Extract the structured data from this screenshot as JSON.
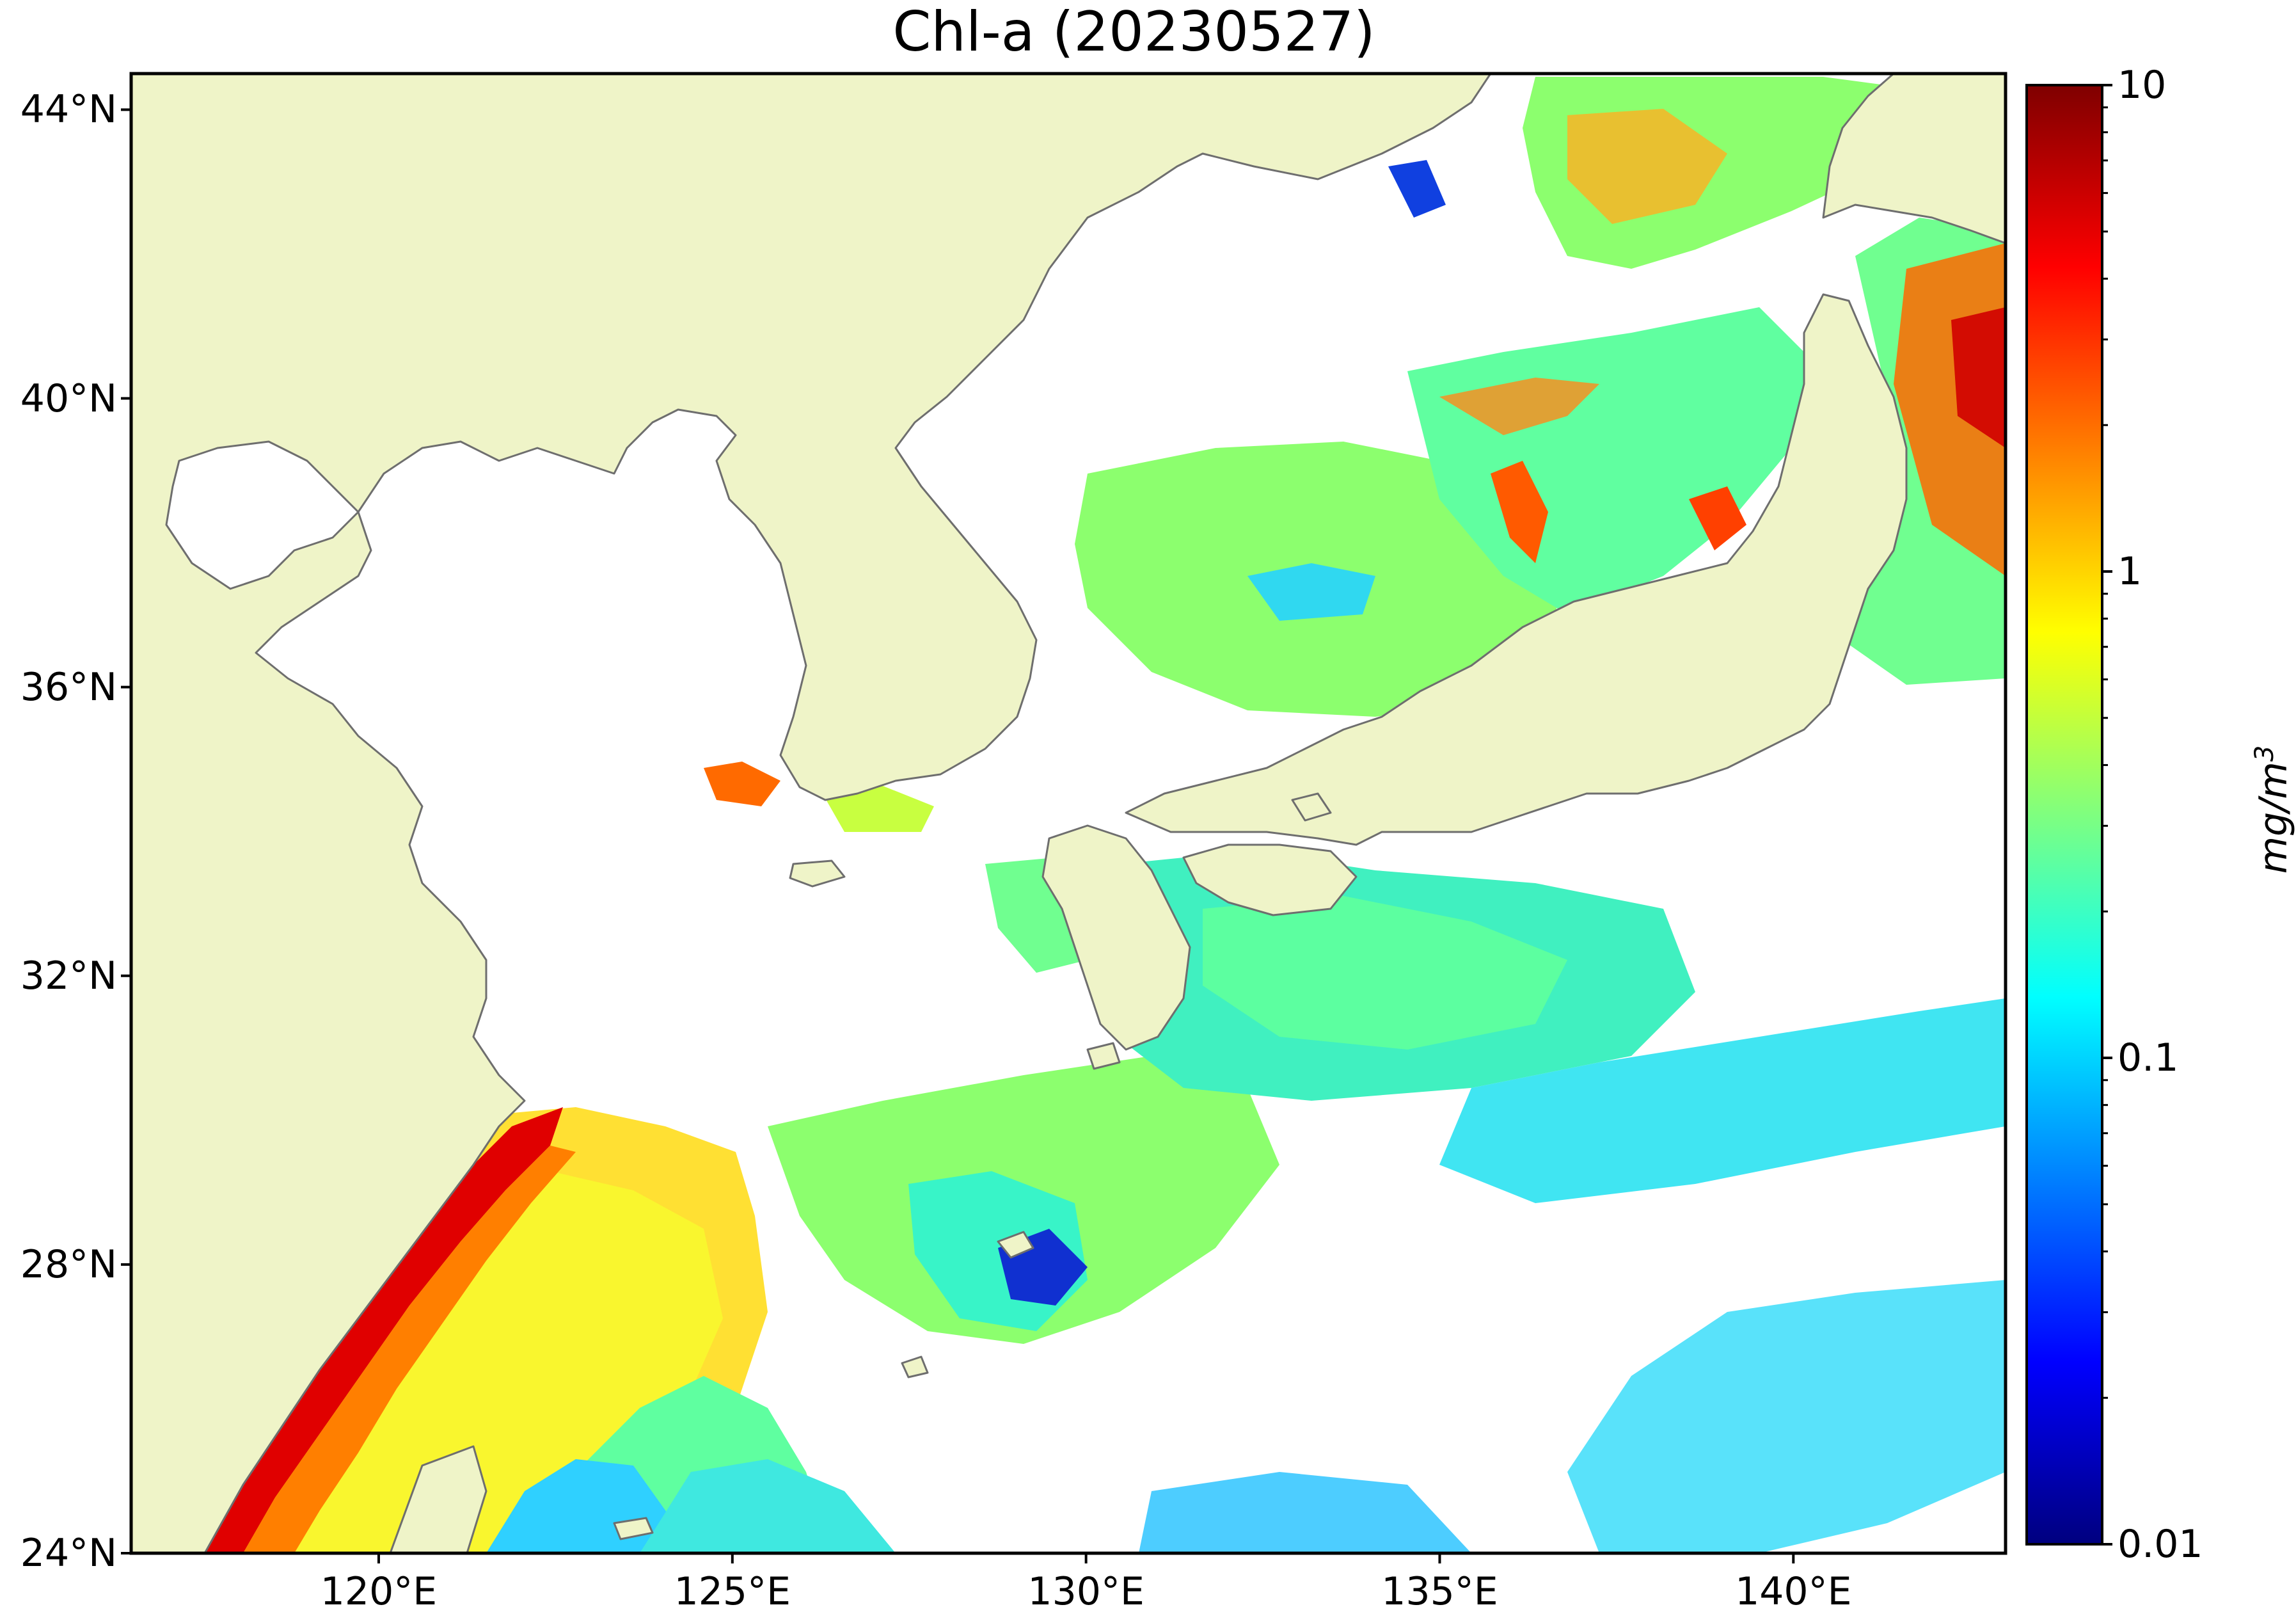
{
  "title": "Chl-a (20230527)",
  "map": {
    "lon_range": [
      116.5,
      143.0
    ],
    "lat_range": [
      24.0,
      44.5
    ],
    "projection": "equirectangular",
    "lat_ticks": [
      {
        "value": 24,
        "label": "24°N"
      },
      {
        "value": 28,
        "label": "28°N"
      },
      {
        "value": 32,
        "label": "32°N"
      },
      {
        "value": 36,
        "label": "36°N"
      },
      {
        "value": 40,
        "label": "40°N"
      },
      {
        "value": 44,
        "label": "44°N"
      }
    ],
    "lon_ticks": [
      {
        "value": 120,
        "label": "120°E"
      },
      {
        "value": 125,
        "label": "125°E"
      },
      {
        "value": 130,
        "label": "130°E"
      },
      {
        "value": 135,
        "label": "135°E"
      },
      {
        "value": 140,
        "label": "140°E"
      }
    ],
    "colors": {
      "land": "#eff4c8",
      "coastline": "#6e6e6e",
      "no_data": "#ffffff",
      "frame": "#000000"
    }
  },
  "colorbar": {
    "scale": "log",
    "min": 0.01,
    "max": 10,
    "unit_label": "mg/m",
    "unit_superscript": "3",
    "ticks": [
      {
        "value": 10,
        "label": "10"
      },
      {
        "value": 1,
        "label": "1"
      },
      {
        "value": 0.1,
        "label": "0.1"
      },
      {
        "value": 0.01,
        "label": "0.01"
      }
    ],
    "colormap": [
      "#00007f",
      "#0000ff",
      "#007fff",
      "#00ffff",
      "#7fff7f",
      "#ffff00",
      "#ff7f00",
      "#ff0000",
      "#7f0000"
    ]
  }
}
